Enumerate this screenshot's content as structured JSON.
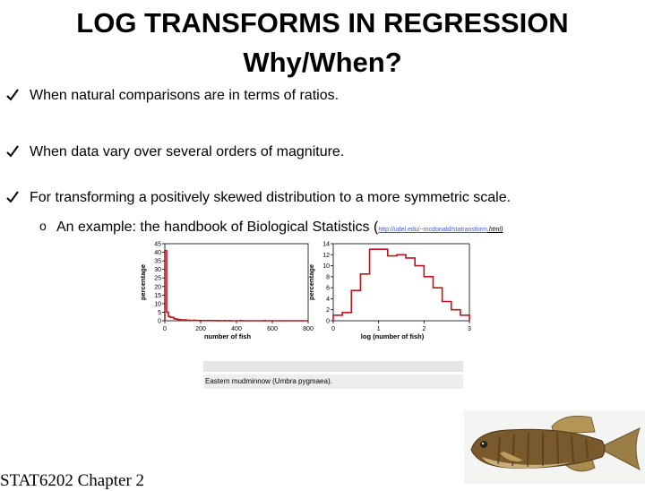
{
  "title": {
    "line1": "LOG TRANSFORMS IN REGRESSION",
    "line2": "Why/When?"
  },
  "bullets": [
    "When natural comparisons are in terms of ratios.",
    "When data vary over several orders of magniture.",
    "For transforming a positively skewed distribution to a more symmetric scale."
  ],
  "sub_bullet": {
    "marker": "o",
    "text": "An example: the handbook of Biological Statistics (",
    "link_text": "http://udel.edu/~mcdonald/statransform",
    "link_end": ".html)"
  },
  "chart_data": [
    {
      "type": "bar",
      "ylabel": "percentage",
      "xlabel": "number of fish",
      "xlim": [
        0,
        800
      ],
      "ylim": [
        0,
        45
      ],
      "x_ticks": [
        "0",
        "200",
        "400",
        "600",
        "800"
      ],
      "y_ticks": [
        "0",
        "5",
        "10",
        "15",
        "20",
        "25",
        "30",
        "35",
        "40",
        "45"
      ],
      "bin_width": 10,
      "values": [
        41,
        5,
        2.5,
        2,
        2,
        1.2,
        1,
        0.8,
        0.6,
        0.5,
        0.4,
        0.5,
        0.3,
        0.3,
        0.2,
        0.2,
        0.3,
        0.2,
        0.2,
        0.1,
        0.2,
        0.1,
        0.1,
        0.1,
        0.2,
        0.1,
        0.1,
        0.1,
        0.1,
        0,
        0.1,
        0,
        0,
        0.1,
        0,
        0,
        0.1,
        0,
        0,
        0,
        0,
        0,
        0.1,
        0,
        0,
        0,
        0,
        0,
        0,
        0,
        0,
        0,
        0,
        0,
        0,
        0.1,
        0,
        0,
        0,
        0,
        0,
        0,
        0,
        0,
        0,
        0,
        0,
        0,
        0,
        0,
        0,
        0,
        0,
        0,
        0,
        0,
        0,
        0,
        0,
        0
      ],
      "grid": false,
      "color": "#c0141b"
    },
    {
      "type": "bar",
      "ylabel": "percentage",
      "xlabel": "log (number of fish)",
      "xlim": [
        0,
        3
      ],
      "ylim": [
        0,
        14
      ],
      "x_ticks": [
        "0",
        "1",
        "2",
        "3"
      ],
      "y_ticks": [
        "0",
        "2",
        "4",
        "6",
        "8",
        "10",
        "12",
        "14"
      ],
      "bin_width": 0.2,
      "values": [
        1,
        1.5,
        5.5,
        8.5,
        13,
        13,
        11.8,
        12,
        11.4,
        10,
        8,
        6,
        3.5,
        2,
        1
      ],
      "grid": false,
      "color": "#c0141b"
    }
  ],
  "caption": {
    "text": "Eastern mudminnow (Umbra pygmaea)."
  },
  "footer": "STAT6202 Chapter 2",
  "colors": {
    "bar": "#c0141b",
    "link": "#3b5bd1",
    "caption_bg": "#ededed"
  }
}
